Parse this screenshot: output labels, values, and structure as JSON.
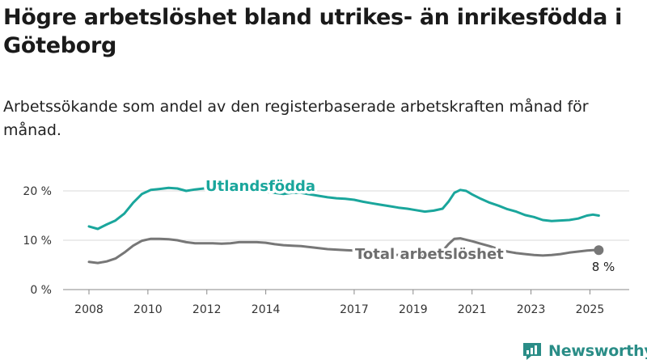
{
  "header": {
    "title": "Högre arbetslöshet bland utrikes- än inrikesfödda i Göteborg",
    "subtitle": "Arbetssökande som andel av den registerbaserade arbetskraften månad för månad."
  },
  "brand": {
    "name": "Newsworthy",
    "color": "#2a8d87"
  },
  "chart_data": {
    "type": "line",
    "title": "Högre arbetslöshet bland utrikes- än inrikesfödda i Göteborg",
    "subtitle": "Arbetssökande som andel av den registerbaserade arbetskraften månad för månad.",
    "xlabel": "",
    "ylabel": "",
    "xlim": [
      2008.0,
      2025.4
    ],
    "ylim": [
      0,
      20
    ],
    "yticks": [
      0,
      10,
      20
    ],
    "ytick_labels": [
      "0 %",
      "10 %",
      "20 %"
    ],
    "xticks": [
      2008,
      2010,
      2012,
      2014,
      2017,
      2019,
      2021,
      2023,
      2025
    ],
    "xtick_labels": [
      "2008",
      "2010",
      "2012",
      "2014",
      "2017",
      "2019",
      "2021",
      "2023",
      "2025"
    ],
    "grid": "horizontal",
    "legend": "none",
    "series": [
      {
        "name": "Utlandsfödda",
        "color": "#1aa69c",
        "points": [
          [
            2008.0,
            12.8
          ],
          [
            2008.3,
            12.3
          ],
          [
            2008.6,
            13.2
          ],
          [
            2008.9,
            14.0
          ],
          [
            2009.2,
            15.4
          ],
          [
            2009.5,
            17.6
          ],
          [
            2009.8,
            19.4
          ],
          [
            2010.1,
            20.2
          ],
          [
            2010.4,
            20.4
          ],
          [
            2010.7,
            20.6
          ],
          [
            2011.0,
            20.5
          ],
          [
            2011.3,
            20.0
          ],
          [
            2011.6,
            20.3
          ],
          [
            2011.9,
            20.5
          ],
          [
            2012.2,
            20.5
          ],
          [
            2012.5,
            20.4
          ],
          [
            2012.8,
            20.1
          ],
          [
            2013.1,
            20.0
          ],
          [
            2013.4,
            20.1
          ],
          [
            2013.7,
            20.0
          ],
          [
            2014.0,
            19.8
          ],
          [
            2014.3,
            19.6
          ],
          [
            2014.6,
            19.4
          ],
          [
            2014.9,
            19.6
          ],
          [
            2015.2,
            19.6
          ],
          [
            2015.5,
            19.3
          ],
          [
            2015.8,
            19.0
          ],
          [
            2016.1,
            18.7
          ],
          [
            2016.4,
            18.5
          ],
          [
            2016.7,
            18.4
          ],
          [
            2017.0,
            18.2
          ],
          [
            2017.3,
            17.8
          ],
          [
            2017.6,
            17.5
          ],
          [
            2017.9,
            17.2
          ],
          [
            2018.2,
            16.9
          ],
          [
            2018.5,
            16.6
          ],
          [
            2018.8,
            16.4
          ],
          [
            2019.1,
            16.1
          ],
          [
            2019.4,
            15.8
          ],
          [
            2019.7,
            16.0
          ],
          [
            2020.0,
            16.4
          ],
          [
            2020.2,
            17.8
          ],
          [
            2020.4,
            19.6
          ],
          [
            2020.6,
            20.2
          ],
          [
            2020.8,
            20.0
          ],
          [
            2021.0,
            19.3
          ],
          [
            2021.3,
            18.4
          ],
          [
            2021.6,
            17.6
          ],
          [
            2021.9,
            17.0
          ],
          [
            2022.2,
            16.3
          ],
          [
            2022.5,
            15.8
          ],
          [
            2022.8,
            15.1
          ],
          [
            2023.1,
            14.7
          ],
          [
            2023.4,
            14.1
          ],
          [
            2023.7,
            13.9
          ],
          [
            2024.0,
            14.0
          ],
          [
            2024.3,
            14.1
          ],
          [
            2024.6,
            14.4
          ],
          [
            2024.9,
            15.0
          ],
          [
            2025.1,
            15.2
          ],
          [
            2025.3,
            15.0
          ]
        ]
      },
      {
        "name": "Total arbetslöshet",
        "color": "#777777",
        "points": [
          [
            2008.0,
            5.6
          ],
          [
            2008.3,
            5.4
          ],
          [
            2008.6,
            5.7
          ],
          [
            2008.9,
            6.3
          ],
          [
            2009.2,
            7.5
          ],
          [
            2009.5,
            8.9
          ],
          [
            2009.8,
            9.9
          ],
          [
            2010.1,
            10.3
          ],
          [
            2010.4,
            10.3
          ],
          [
            2010.7,
            10.2
          ],
          [
            2011.0,
            10.0
          ],
          [
            2011.3,
            9.6
          ],
          [
            2011.6,
            9.4
          ],
          [
            2011.9,
            9.4
          ],
          [
            2012.2,
            9.4
          ],
          [
            2012.5,
            9.3
          ],
          [
            2012.8,
            9.4
          ],
          [
            2013.1,
            9.6
          ],
          [
            2013.4,
            9.6
          ],
          [
            2013.7,
            9.6
          ],
          [
            2014.0,
            9.5
          ],
          [
            2014.3,
            9.2
          ],
          [
            2014.6,
            9.0
          ],
          [
            2014.9,
            8.9
          ],
          [
            2015.2,
            8.8
          ],
          [
            2015.5,
            8.6
          ],
          [
            2015.8,
            8.4
          ],
          [
            2016.1,
            8.2
          ],
          [
            2016.4,
            8.1
          ],
          [
            2016.7,
            8.0
          ],
          [
            2017.0,
            7.9
          ],
          [
            2017.3,
            7.6
          ],
          [
            2017.6,
            7.4
          ],
          [
            2017.9,
            7.2
          ],
          [
            2018.2,
            7.1
          ],
          [
            2018.5,
            7.0
          ],
          [
            2018.8,
            6.9
          ],
          [
            2019.1,
            6.9
          ],
          [
            2019.4,
            6.9
          ],
          [
            2019.7,
            7.2
          ],
          [
            2020.0,
            7.8
          ],
          [
            2020.2,
            9.2
          ],
          [
            2020.4,
            10.3
          ],
          [
            2020.6,
            10.4
          ],
          [
            2020.8,
            10.1
          ],
          [
            2021.0,
            9.8
          ],
          [
            2021.3,
            9.3
          ],
          [
            2021.6,
            8.8
          ],
          [
            2021.9,
            8.2
          ],
          [
            2022.2,
            7.7
          ],
          [
            2022.5,
            7.4
          ],
          [
            2022.8,
            7.2
          ],
          [
            2023.1,
            7.0
          ],
          [
            2023.4,
            6.9
          ],
          [
            2023.7,
            7.0
          ],
          [
            2024.0,
            7.2
          ],
          [
            2024.3,
            7.5
          ],
          [
            2024.6,
            7.7
          ],
          [
            2024.9,
            7.9
          ],
          [
            2025.1,
            8.0
          ],
          [
            2025.3,
            8.0
          ]
        ]
      }
    ],
    "annotations": [
      {
        "text": "Utlandsfödda",
        "series": 0
      },
      {
        "text": "Total arbetslöshet",
        "series": 1
      },
      {
        "text": "8 %",
        "series": 1,
        "point": "last"
      }
    ]
  }
}
